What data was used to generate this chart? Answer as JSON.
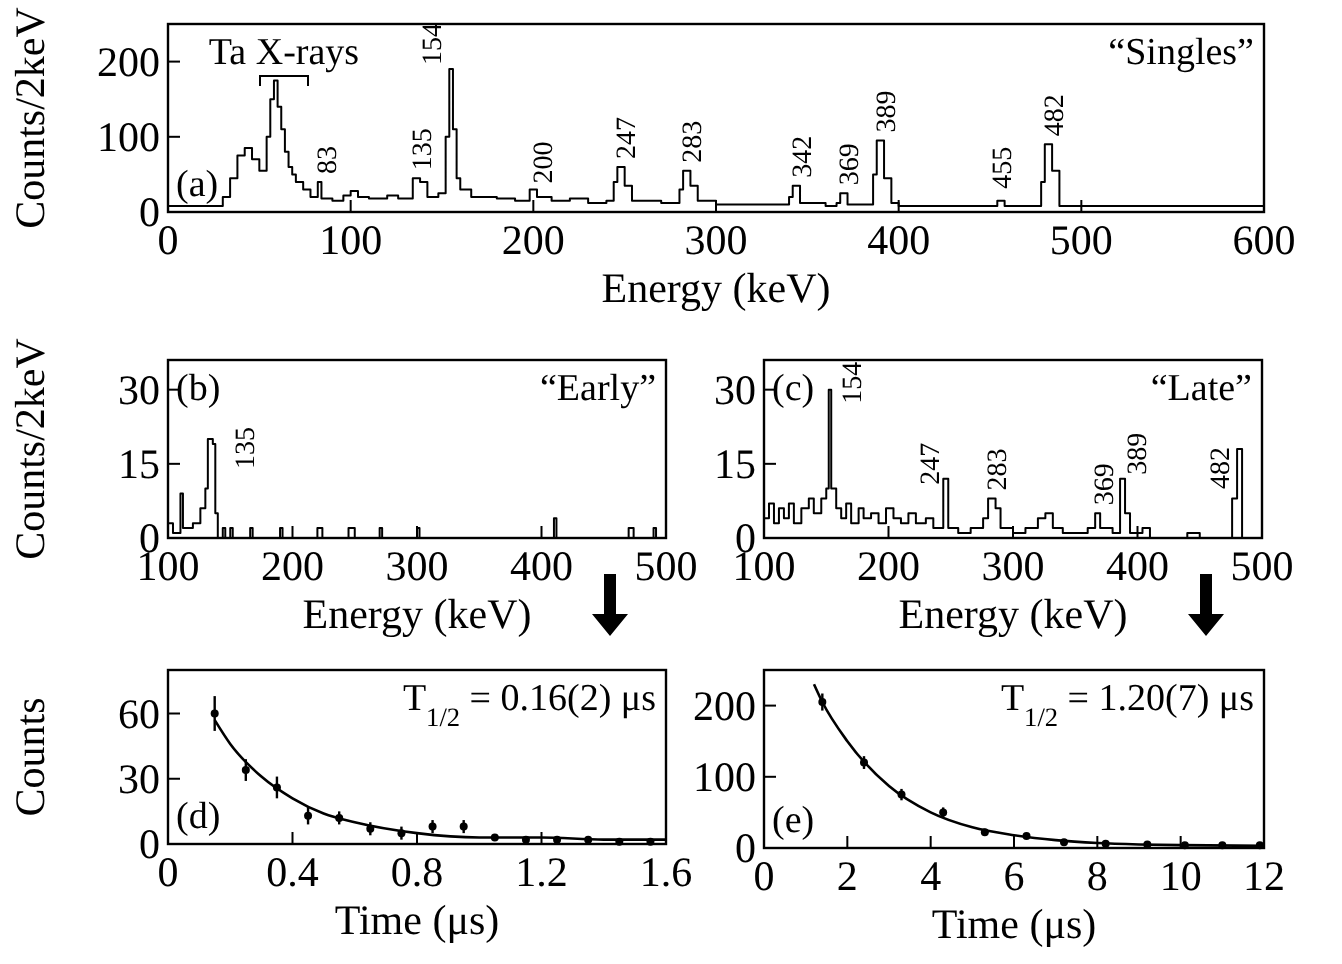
{
  "chart_data": [
    {
      "type": "step",
      "color": "#000000",
      "xlabel": "Energy (keV)",
      "ylabel": "Counts/2keV",
      "xlim": [
        0,
        600
      ],
      "xticks": [
        0,
        100,
        200,
        300,
        400,
        500,
        600
      ],
      "ylim": [
        0,
        250
      ],
      "yticks": [
        0,
        100,
        200
      ],
      "x": [
        0,
        30,
        34,
        38,
        42,
        46,
        50,
        54,
        56,
        58,
        60,
        62,
        64,
        66,
        68,
        70,
        74,
        78,
        82,
        84,
        90,
        96,
        100,
        104,
        110,
        120,
        126,
        134,
        138,
        142,
        148,
        152,
        154,
        156,
        158,
        160,
        166,
        180,
        190,
        198,
        202,
        210,
        220,
        230,
        240,
        244,
        246,
        250,
        254,
        270,
        280,
        282,
        286,
        290,
        300,
        320,
        340,
        342,
        346,
        360,
        366,
        368,
        372,
        386,
        388,
        392,
        396,
        400,
        450,
        454,
        458,
        478,
        480,
        484,
        488,
        600
      ],
      "values": [
        8,
        20,
        45,
        75,
        85,
        70,
        55,
        100,
        150,
        175,
        140,
        110,
        80,
        60,
        50,
        40,
        30,
        20,
        40,
        18,
        15,
        22,
        28,
        20,
        18,
        22,
        18,
        45,
        40,
        20,
        25,
        100,
        190,
        110,
        45,
        30,
        20,
        18,
        15,
        30,
        20,
        15,
        18,
        12,
        15,
        40,
        60,
        35,
        15,
        12,
        30,
        55,
        35,
        15,
        10,
        10,
        20,
        35,
        12,
        8,
        12,
        25,
        10,
        50,
        95,
        45,
        12,
        8,
        8,
        15,
        8,
        40,
        90,
        55,
        8,
        8
      ],
      "annotations": [
        "(a)",
        "“Singles”",
        "Ta X-rays",
        {
          "text": "83",
          "x": 82,
          "y": 40
        },
        {
          "text": "135",
          "x": 134,
          "y": 45
        },
        {
          "text": "154",
          "x": 154,
          "y": 190
        },
        {
          "text": "200",
          "x": 198,
          "y": 30
        },
        {
          "text": "247",
          "x": 246,
          "y": 60
        },
        {
          "text": "283",
          "x": 282,
          "y": 55
        },
        {
          "text": "342",
          "x": 342,
          "y": 35
        },
        {
          "text": "369",
          "x": 368,
          "y": 25
        },
        {
          "text": "389",
          "x": 388,
          "y": 95
        },
        {
          "text": "455",
          "x": 454,
          "y": 15
        },
        {
          "text": "482",
          "x": 480,
          "y": 90
        }
      ]
    },
    {
      "type": "step",
      "color": "#000000",
      "xlabel": "Energy (keV)",
      "ylabel": "Counts/2keV",
      "xlim": [
        100,
        500
      ],
      "xticks": [
        100,
        200,
        300,
        400,
        500
      ],
      "ylim": [
        0,
        36
      ],
      "yticks": [
        0,
        15,
        30
      ],
      "x": [
        100,
        104,
        110,
        112,
        120,
        126,
        130,
        132,
        136,
        138,
        140,
        144,
        146,
        150,
        152,
        166,
        168,
        190,
        192,
        220,
        224,
        245,
        250,
        270,
        272,
        300,
        302,
        410,
        412,
        470,
        474,
        490,
        492,
        500
      ],
      "values": [
        3,
        1,
        9,
        2,
        3,
        6,
        10,
        20,
        19,
        5,
        0,
        2,
        0,
        2,
        0,
        2,
        0,
        2,
        0,
        2,
        0,
        2,
        0,
        2,
        0,
        2,
        0,
        4,
        0,
        2,
        0,
        2,
        0,
        0
      ],
      "annotations": [
        "(b)",
        "“Early”",
        {
          "text": "135",
          "x": 132,
          "y": 20
        }
      ]
    },
    {
      "type": "step",
      "color": "#000000",
      "xlabel": "Energy (keV)",
      "xlim": [
        100,
        500
      ],
      "xticks": [
        100,
        200,
        300,
        400,
        500
      ],
      "ylim": [
        0,
        36
      ],
      "yticks": [
        0,
        15,
        30
      ],
      "x": [
        100,
        104,
        108,
        112,
        116,
        120,
        124,
        130,
        136,
        140,
        146,
        150,
        152,
        154,
        158,
        162,
        166,
        170,
        176,
        180,
        186,
        192,
        198,
        204,
        210,
        216,
        222,
        230,
        236,
        244,
        248,
        256,
        266,
        276,
        280,
        286,
        290,
        300,
        310,
        320,
        326,
        332,
        340,
        360,
        366,
        370,
        380,
        386,
        390,
        394,
        404,
        410,
        440,
        450,
        476,
        480,
        484,
        500
      ],
      "values": [
        4,
        7,
        3,
        6,
        4,
        7,
        3,
        6,
        8,
        5,
        8,
        10,
        30,
        10,
        6,
        4,
        7,
        3,
        6,
        4,
        5,
        3,
        6,
        4,
        3,
        5,
        3,
        4,
        2,
        12,
        2,
        1,
        2,
        4,
        8,
        6,
        2,
        1,
        2,
        4,
        5,
        2,
        1,
        2,
        5,
        2,
        1,
        12,
        5,
        1,
        2,
        0,
        1,
        0,
        8,
        18,
        0,
        0
      ],
      "annotations": [
        "(c)",
        "“Late”",
        {
          "text": "154",
          "x": 152,
          "y": 30
        },
        {
          "text": "247",
          "x": 244,
          "y": 12
        },
        {
          "text": "283",
          "x": 280,
          "y": 8
        },
        {
          "text": "369",
          "x": 366,
          "y": 5
        },
        {
          "text": "389",
          "x": 386,
          "y": 12
        },
        {
          "text": "482",
          "x": 480,
          "y": 18
        }
      ]
    },
    {
      "type": "scatter",
      "xlabel": "Time (μs)",
      "ylabel": "Counts",
      "xlim": [
        0,
        1.6
      ],
      "xticks": [
        0,
        0.4,
        0.8,
        1.2,
        1.6
      ],
      "ylim": [
        0,
        80
      ],
      "yticks": [
        0,
        30,
        60
      ],
      "series": [
        {
          "marker": "circle",
          "color": "#000000",
          "x": [
            0.15,
            0.25,
            0.35,
            0.45,
            0.55,
            0.65,
            0.75,
            0.85,
            0.95,
            1.05,
            1.15,
            1.25,
            1.35,
            1.45,
            1.55
          ],
          "values": [
            60,
            34,
            26,
            13,
            12,
            7,
            5,
            8,
            8,
            3,
            2,
            2,
            2,
            1,
            1
          ],
          "errors": [
            8,
            5,
            5,
            4,
            3,
            3,
            3,
            3,
            3,
            null,
            null,
            null,
            null,
            null,
            null
          ]
        },
        {
          "type": "line",
          "color": "#000000",
          "x": [
            0.15,
            0.2,
            0.3,
            0.4,
            0.5,
            0.6,
            0.8,
            1.0,
            1.2,
            1.4,
            1.6
          ],
          "values": [
            57,
            46,
            31,
            21,
            14,
            10,
            5,
            3,
            3,
            2,
            2
          ]
        }
      ],
      "annotations": [
        "(d)",
        "T$_{1/2}$ = 0.16(2) μs"
      ]
    },
    {
      "type": "scatter",
      "xlabel": "Time (μs)",
      "xlim": [
        0,
        12
      ],
      "xticks": [
        0,
        2,
        4,
        6,
        8,
        10,
        12
      ],
      "ylim": [
        0,
        250
      ],
      "yticks": [
        0,
        100,
        200
      ],
      "series": [
        {
          "marker": "circle",
          "color": "#000000",
          "x": [
            1.4,
            2.4,
            3.3,
            4.3,
            5.3,
            6.3,
            7.2,
            8.2,
            9.2,
            10.1,
            11,
            11.9
          ],
          "values": [
            205,
            120,
            75,
            50,
            22,
            17,
            8,
            6,
            5,
            4,
            4,
            4
          ],
          "errors": [
            12,
            9,
            8,
            7,
            5,
            null,
            null,
            null,
            null,
            null,
            null,
            null
          ]
        },
        {
          "type": "line",
          "color": "#000000",
          "x": [
            1.2,
            1.4,
            2,
            3,
            4,
            5,
            6,
            7,
            8,
            9,
            10,
            12
          ],
          "values": [
            230,
            205,
            150,
            87,
            50,
            29,
            18,
            11,
            7,
            5,
            4,
            3
          ]
        }
      ],
      "annotations": [
        "(e)",
        "T$_{1/2}$ = 1.20(7) μs"
      ]
    }
  ]
}
